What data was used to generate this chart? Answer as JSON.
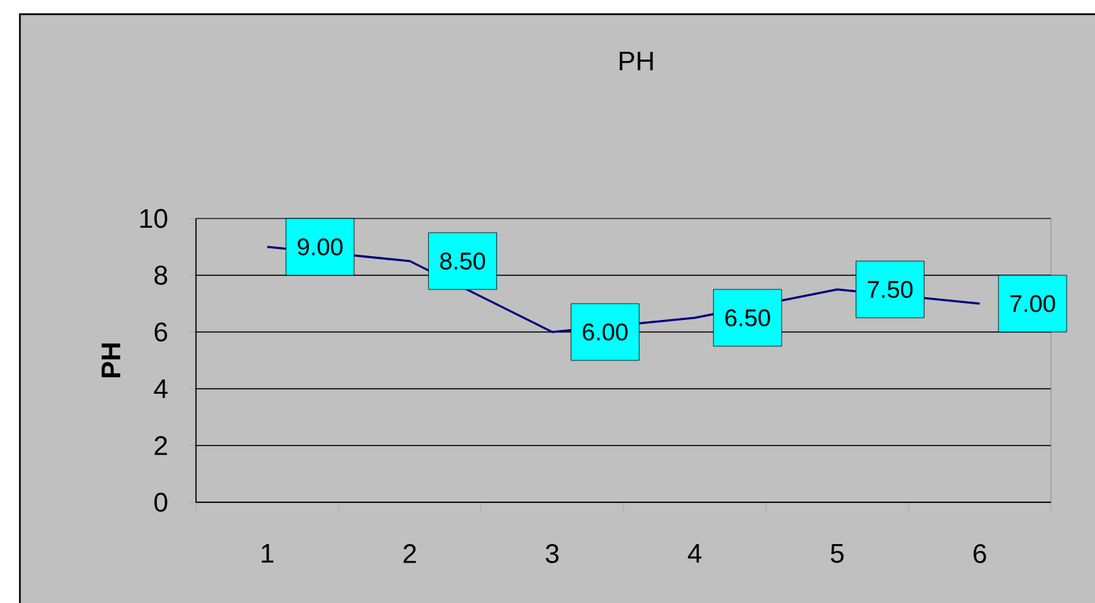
{
  "chart_data": {
    "type": "line",
    "title": "PH",
    "ylabel": "PH",
    "categories": [
      "1",
      "2",
      "3",
      "4",
      "5",
      "6"
    ],
    "series": [
      {
        "color": "#000080",
        "values": [
          9.0,
          8.5,
          6.0,
          6.5,
          7.5,
          7.0
        ],
        "value_labels": [
          "9.00",
          "8.50",
          "6.00",
          "6.50",
          "7.50",
          "7.00"
        ]
      }
    ],
    "ylim": [
      0,
      10
    ],
    "yticks": [
      0,
      2,
      4,
      6,
      8,
      10
    ],
    "grid": "y"
  }
}
